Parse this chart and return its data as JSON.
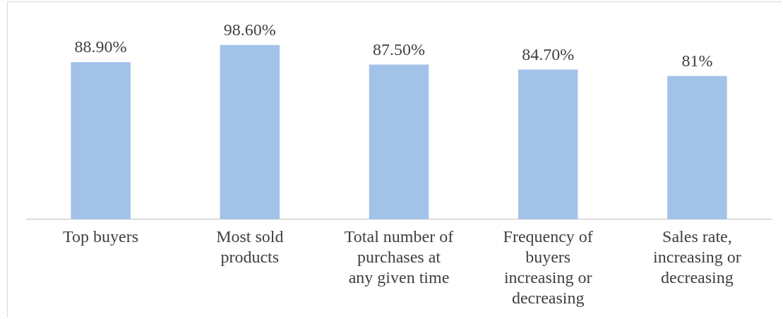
{
  "chart_data": {
    "type": "bar",
    "categories": [
      "Top buyers",
      "Most sold products",
      "Total number of purchases at any given time",
      "Frequency of buyers increasing or decreasing",
      "Sales rate, increasing or decreasing"
    ],
    "values": [
      88.9,
      98.6,
      87.5,
      84.7,
      81
    ],
    "value_labels": [
      "88.90%",
      "98.60%",
      "87.50%",
      "84.70%",
      "81%"
    ],
    "color": "#a3c2e8",
    "grid": false,
    "legend": false
  }
}
